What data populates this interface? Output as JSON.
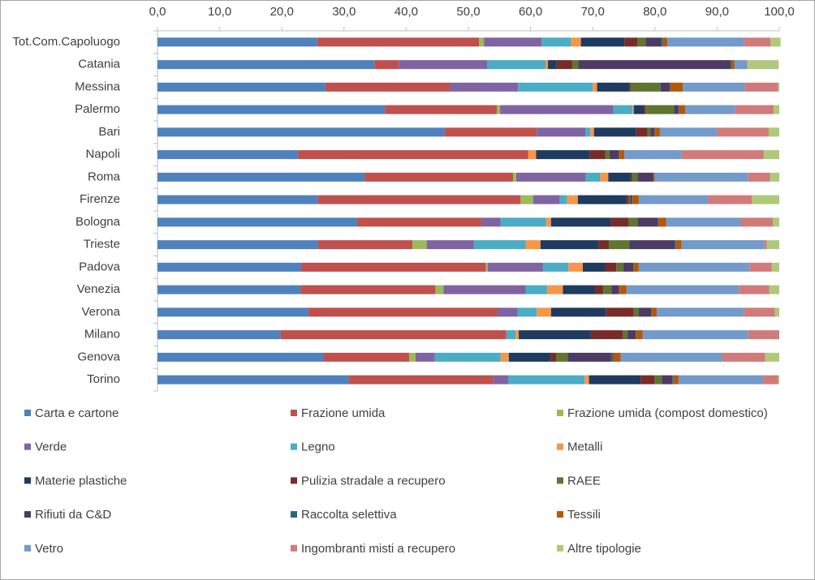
{
  "chart_data": {
    "type": "stacked-bar-horizontal",
    "categories": [
      "Tot.Com.Capoluogo",
      "Catania",
      "Messina",
      "Palermo",
      "Bari",
      "Napoli",
      "Roma",
      "Firenze",
      "Bologna",
      "Trieste",
      "Padova",
      "Venezia",
      "Verona",
      "Milano",
      "Genova",
      "Torino"
    ],
    "xlim": [
      0,
      100
    ],
    "xticks": [
      {
        "value": 0,
        "label": "0,0"
      },
      {
        "value": 10,
        "label": "10,0"
      },
      {
        "value": 20,
        "label": "20,0"
      },
      {
        "value": 30,
        "label": "30,0"
      },
      {
        "value": 40,
        "label": "40,0"
      },
      {
        "value": 50,
        "label": "50,0"
      },
      {
        "value": 60,
        "label": "60,0"
      },
      {
        "value": 70,
        "label": "70,0"
      },
      {
        "value": 80,
        "label": "80,0"
      },
      {
        "value": 90,
        "label": "90,0"
      },
      {
        "value": 100,
        "label": "100,0"
      }
    ],
    "grid": false,
    "legend": "bottom",
    "series": [
      {
        "name": "Carta e cartone",
        "color": "#4f81bd",
        "values": [
          25.7,
          34.9,
          27.0,
          36.6,
          46.2,
          22.6,
          33.3,
          25.8,
          32.1,
          25.8,
          23.1,
          23.0,
          24.3,
          19.8,
          26.7,
          30.8
        ]
      },
      {
        "name": "Frazione umida",
        "color": "#c0504d",
        "values": [
          26.0,
          3.9,
          20.0,
          18.0,
          14.8,
          37.0,
          23.9,
          32.6,
          20.0,
          15.2,
          29.7,
          21.7,
          30.4,
          36.3,
          13.8,
          23.2
        ]
      },
      {
        "name": "Frazione umida (compost domestico)",
        "color": "#9bbb59",
        "values": [
          0.8,
          0,
          0,
          0.5,
          0,
          0,
          0.5,
          2.0,
          0,
          2.3,
          0.3,
          1.3,
          0,
          0,
          1.0,
          0
        ]
      },
      {
        "name": "Verde",
        "color": "#8064a2",
        "values": [
          9.3,
          14.2,
          11.0,
          18.2,
          7.8,
          0,
          11.2,
          4.3,
          3.1,
          7.6,
          8.9,
          13.2,
          3.2,
          0,
          3.1,
          2.4
        ]
      },
      {
        "name": "Legno",
        "color": "#4bacc6",
        "values": [
          4.7,
          9.4,
          12.0,
          3.1,
          0.8,
          0,
          2.3,
          1.2,
          7.3,
          8.3,
          4.1,
          3.5,
          3.1,
          1.5,
          10.6,
          12.3
        ]
      },
      {
        "name": "Metalli",
        "color": "#f79646",
        "values": [
          1.6,
          0.4,
          0.7,
          0.2,
          0.6,
          1.3,
          1.3,
          1.7,
          0.8,
          2.4,
          2.3,
          2.5,
          2.3,
          0.5,
          1.3,
          0.7
        ]
      },
      {
        "name": "Materie plastiche",
        "color": "#1f3b60",
        "values": [
          7.0,
          1.4,
          5.2,
          1.6,
          6.8,
          8.6,
          3.6,
          7.8,
          9.6,
          9.3,
          3.6,
          5.1,
          8.8,
          11.6,
          6.7,
          8.3
        ]
      },
      {
        "name": "Pulizia stradale a recupero",
        "color": "#772c2a",
        "values": [
          2.1,
          2.5,
          0.2,
          0.3,
          1.8,
          2.5,
          0.2,
          0.4,
          2.9,
          1.7,
          1.8,
          1.4,
          4.5,
          5.1,
          0.9,
          2.2
        ]
      },
      {
        "name": "RAEE",
        "color": "#5f7530",
        "values": [
          1.3,
          1.0,
          4.8,
          4.6,
          0.5,
          0.7,
          0.9,
          0.2,
          1.4,
          3.3,
          1.1,
          1.3,
          0.8,
          0.8,
          1.9,
          1.2
        ]
      },
      {
        "name": "Rifiuti da C&D",
        "color": "#4d3b62",
        "values": [
          2.5,
          24.4,
          1.5,
          0.7,
          0.6,
          1.5,
          2.5,
          0.3,
          3.3,
          7.3,
          1.6,
          1.2,
          2.0,
          1.3,
          7.0,
          1.7
        ]
      },
      {
        "name": "Raccolta selettiva",
        "color": "#276a7c",
        "values": [
          0.3,
          0.2,
          0.1,
          0.1,
          0.1,
          0.1,
          0.1,
          0.1,
          0.1,
          0.2,
          0.1,
          0.1,
          0.1,
          0.1,
          0.3,
          0.2
        ]
      },
      {
        "name": "Tessili",
        "color": "#b65708",
        "values": [
          0.7,
          0.5,
          2.0,
          1.0,
          0.8,
          0.8,
          0.2,
          1.0,
          1.2,
          0.9,
          0.8,
          1.1,
          0.8,
          1.0,
          1.2,
          0.8
        ]
      },
      {
        "name": "Vetro",
        "color": "#729aca",
        "values": [
          12.3,
          2.0,
          10.0,
          8.0,
          9.2,
          9.2,
          15.0,
          11.1,
          12.0,
          13.3,
          17.8,
          18.1,
          14.0,
          17.0,
          16.3,
          13.6
        ]
      },
      {
        "name": "Ingombranti misti a recupero",
        "color": "#d07b7a",
        "values": [
          4.3,
          0.1,
          5.3,
          6.2,
          8.3,
          13.2,
          3.5,
          7.1,
          5.2,
          0.4,
          3.6,
          4.9,
          5.0,
          5.0,
          6.9,
          2.4
        ]
      },
      {
        "name": "Altre tipologie",
        "color": "#afc97a",
        "values": [
          1.6,
          5.0,
          0.2,
          0.9,
          1.7,
          2.5,
          1.5,
          4.4,
          1.0,
          2.0,
          1.2,
          1.6,
          0.7,
          0,
          2.3,
          0.2
        ]
      }
    ]
  }
}
